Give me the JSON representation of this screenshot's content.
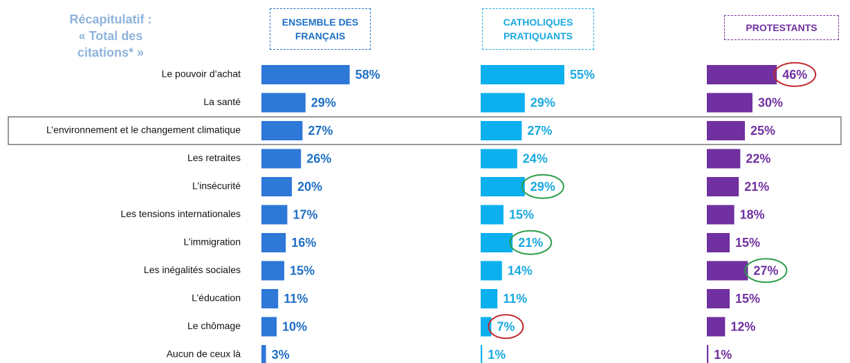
{
  "chart_data": {
    "type": "bar",
    "title": [
      "Récapitulatif :",
      "« Total des",
      "citations* »"
    ],
    "categories": [
      "Le pouvoir d’achat",
      "La santé",
      "L’environnement et le changement climatique",
      "Les retraites",
      "L’insécurité",
      "Les tensions internationales",
      "L’immigration",
      "Les inégalités sociales",
      "L’éducation",
      "Le chômage",
      "Aucun de ceux là"
    ],
    "series": [
      {
        "name": "ENSEMBLE DES FRANÇAIS",
        "color": "#2e78d8",
        "label_color": "#1f6fc5",
        "values": [
          58,
          29,
          27,
          26,
          20,
          17,
          16,
          15,
          11,
          10,
          3
        ],
        "value_labels": [
          "58%",
          "29%",
          "27%",
          "26%",
          "20%",
          "17%",
          "16%",
          "15%",
          "11%",
          "10%",
          "3%"
        ]
      },
      {
        "name": "CATHOLIQUES PRATIQUANTS",
        "color": "#0db0ef",
        "label_color": "#1aa9e0",
        "values": [
          55,
          29,
          27,
          24,
          29,
          15,
          21,
          14,
          11,
          7,
          1
        ],
        "value_labels": [
          "55%",
          "29%",
          "27%",
          "24%",
          "29%",
          "15%",
          "21%",
          "14%",
          "11%",
          "7%",
          "1%"
        ]
      },
      {
        "name": "PROTESTANTS",
        "color": "#7030a0",
        "label_color": "#7030a0",
        "values": [
          46,
          30,
          25,
          22,
          21,
          18,
          15,
          27,
          15,
          12,
          1
        ],
        "value_labels": [
          "46%",
          "30%",
          "25%",
          "22%",
          "21%",
          "18%",
          "15%",
          "27%",
          "15%",
          "12%",
          "1%"
        ]
      }
    ],
    "boxed_category": 2,
    "circled": [
      {
        "series": 2,
        "index": 0,
        "color": "#c0282e"
      },
      {
        "series": 1,
        "index": 4,
        "color": "#2a9d48"
      },
      {
        "series": 1,
        "index": 6,
        "color": "#2a9d48"
      },
      {
        "series": 2,
        "index": 7,
        "color": "#2a9d48"
      },
      {
        "series": 1,
        "index": 9,
        "color": "#c0282e"
      }
    ]
  }
}
